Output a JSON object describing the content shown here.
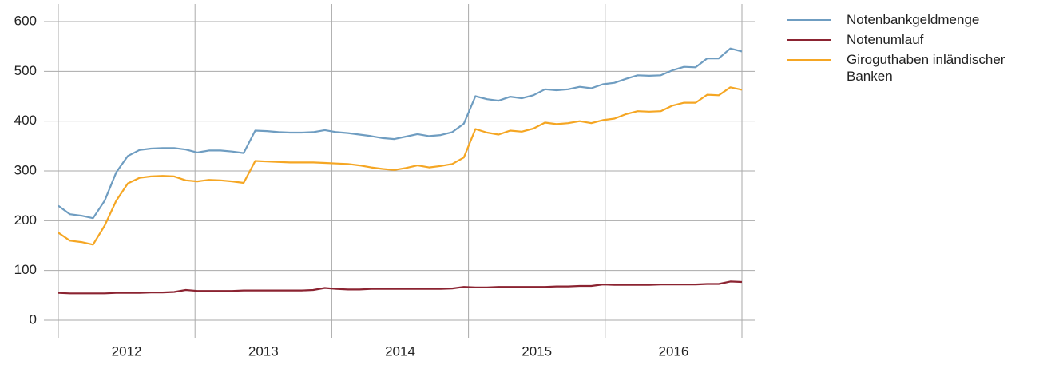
{
  "chart_data": {
    "type": "line",
    "categories": [
      "2012",
      null,
      null,
      null,
      null,
      null,
      null,
      null,
      null,
      null,
      null,
      null,
      "2013",
      null,
      null,
      null,
      null,
      null,
      null,
      null,
      null,
      null,
      null,
      null,
      "2014",
      null,
      null,
      null,
      null,
      null,
      null,
      null,
      null,
      null,
      null,
      null,
      "2015",
      null,
      null,
      null,
      null,
      null,
      null,
      null,
      null,
      null,
      null,
      null,
      "2016",
      null,
      null,
      null,
      null,
      null,
      null,
      null,
      null,
      null,
      null,
      null
    ],
    "ylim": [
      0,
      600
    ],
    "yticks": [
      0,
      100,
      200,
      300,
      400,
      500,
      600
    ],
    "grid": true,
    "series": [
      {
        "name": "Notenbankgeldmenge",
        "color": "#6f9dc1",
        "values": [
          230,
          213,
          210,
          205,
          240,
          297,
          330,
          342,
          345,
          346,
          346,
          343,
          337,
          341,
          341,
          339,
          336,
          381,
          380,
          378,
          377,
          377,
          378,
          382,
          378,
          376,
          373,
          370,
          366,
          364,
          369,
          374,
          370,
          372,
          378,
          395,
          450,
          444,
          441,
          449,
          446,
          452,
          464,
          462,
          464,
          469,
          466,
          474,
          477,
          485,
          492,
          491,
          492,
          502,
          509,
          508,
          526,
          526,
          546,
          540
        ]
      },
      {
        "name": "Notenumlauf",
        "color": "#8b2331",
        "values": [
          55,
          54,
          54,
          54,
          54,
          55,
          55,
          55,
          56,
          56,
          57,
          61,
          59,
          59,
          59,
          59,
          60,
          60,
          60,
          60,
          60,
          60,
          61,
          65,
          63,
          62,
          62,
          63,
          63,
          63,
          63,
          63,
          63,
          63,
          64,
          67,
          66,
          66,
          67,
          67,
          67,
          67,
          67,
          68,
          68,
          69,
          69,
          72,
          71,
          71,
          71,
          71,
          72,
          72,
          72,
          72,
          73,
          73,
          78,
          77
        ]
      },
      {
        "name": "Giroguthaben inländischer Banken",
        "color": "#f5a623",
        "values": [
          176,
          160,
          157,
          152,
          190,
          240,
          275,
          286,
          289,
          290,
          289,
          281,
          279,
          282,
          281,
          279,
          276,
          320,
          319,
          318,
          317,
          317,
          317,
          316,
          315,
          314,
          311,
          307,
          304,
          302,
          306,
          311,
          307,
          310,
          314,
          327,
          384,
          377,
          373,
          381,
          379,
          385,
          397,
          394,
          396,
          400,
          396,
          402,
          405,
          414,
          420,
          419,
          420,
          431,
          437,
          437,
          453,
          452,
          468,
          463
        ]
      }
    ]
  }
}
